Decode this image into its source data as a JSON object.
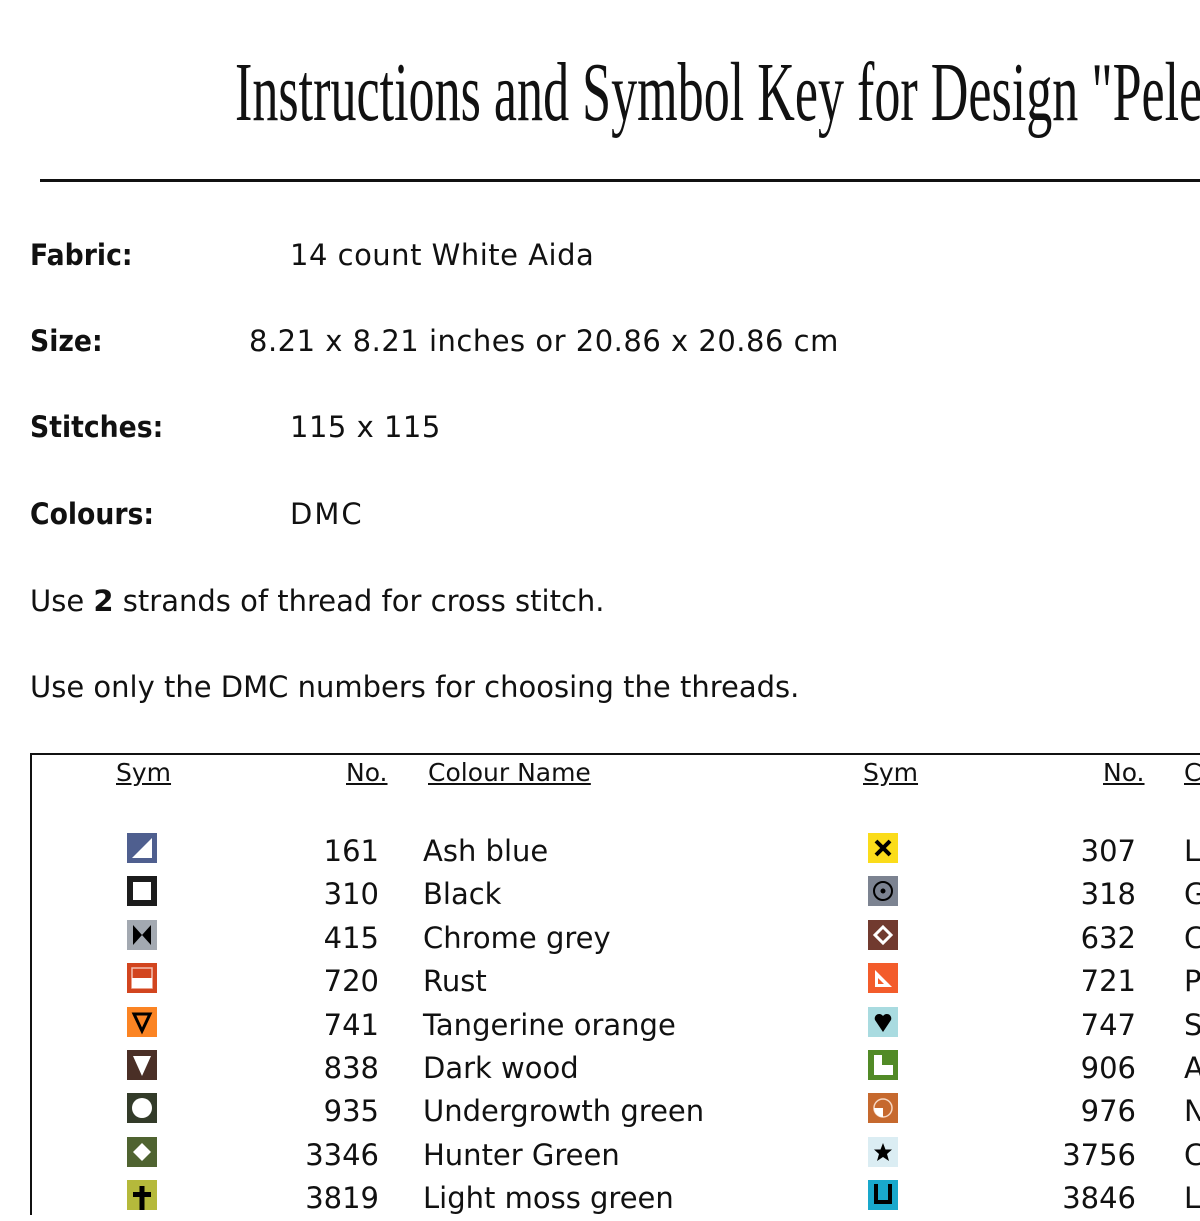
{
  "title": "Instructions and Symbol Key for Design \"Peles",
  "info": [
    {
      "label": "Fabric:",
      "value": "14 count White Aida"
    },
    {
      "label": "Size:",
      "value": "8.21 x 8.21 inches or 20.86 x 20.86 cm"
    },
    {
      "label": "Stitches:",
      "value": "115 x 115"
    },
    {
      "label": "Colours:",
      "value": "DMC"
    }
  ],
  "notes": {
    "strands_pre": "Use ",
    "strands_num": "2",
    "strands_post": " strands of thread for cross stitch.",
    "dmc": "Use only the DMC numbers for choosing the threads."
  },
  "table": {
    "headers": {
      "sym": "Sym",
      "no": "No.",
      "name": "Colour Name",
      "sym2": "Sym",
      "no2": "No.",
      "name2": "C"
    },
    "left": [
      {
        "icon": "half-triangle-icon",
        "bg": "#4f5f8f",
        "no": "161",
        "name": "Ash blue"
      },
      {
        "icon": "open-square-icon",
        "bg": "#1c1c1c",
        "no": "310",
        "name": "Black"
      },
      {
        "icon": "bowtie-icon",
        "bg": "#a3a9b1",
        "no": "415",
        "name": "Chrome grey"
      },
      {
        "icon": "half-bar-icon",
        "bg": "#d2451f",
        "no": "720",
        "name": "Rust"
      },
      {
        "icon": "down-triangle-outline-icon",
        "bg": "#fb8423",
        "no": "741",
        "name": "Tangerine orange"
      },
      {
        "icon": "down-triangle-icon",
        "bg": "#4a2f26",
        "no": "838",
        "name": "Dark wood"
      },
      {
        "icon": "circle-icon",
        "bg": "#333b29",
        "no": "935",
        "name": "Undergrowth green"
      },
      {
        "icon": "diamond-icon",
        "bg": "#4f6330",
        "no": "3346",
        "name": "Hunter Green"
      },
      {
        "icon": "plus-icon",
        "bg": "#b5b93b",
        "no": "3819",
        "name": "Light moss green"
      }
    ],
    "right": [
      {
        "icon": "x-icon",
        "bg": "#fbdc1a",
        "no": "307",
        "name": "L"
      },
      {
        "icon": "dot-circle-icon",
        "bg": "#7c8391",
        "no": "318",
        "name": "G"
      },
      {
        "icon": "diamond-outline-icon",
        "bg": "#713a2f",
        "no": "632",
        "name": "C"
      },
      {
        "icon": "set-square-icon",
        "bg": "#f35c2b",
        "no": "721",
        "name": "P"
      },
      {
        "icon": "heart-icon",
        "bg": "#a9dbe0",
        "no": "747",
        "name": "S"
      },
      {
        "icon": "l-shape-icon",
        "bg": "#518a26",
        "no": "906",
        "name": "A"
      },
      {
        "icon": "quarter-circle-icon",
        "bg": "#c6692e",
        "no": "976",
        "name": "N"
      },
      {
        "icon": "star-icon",
        "bg": "#dbedf3",
        "no": "3756",
        "name": "C"
      },
      {
        "icon": "u-shape-icon",
        "bg": "#19a8cc",
        "no": "3846",
        "name": "L"
      }
    ]
  }
}
